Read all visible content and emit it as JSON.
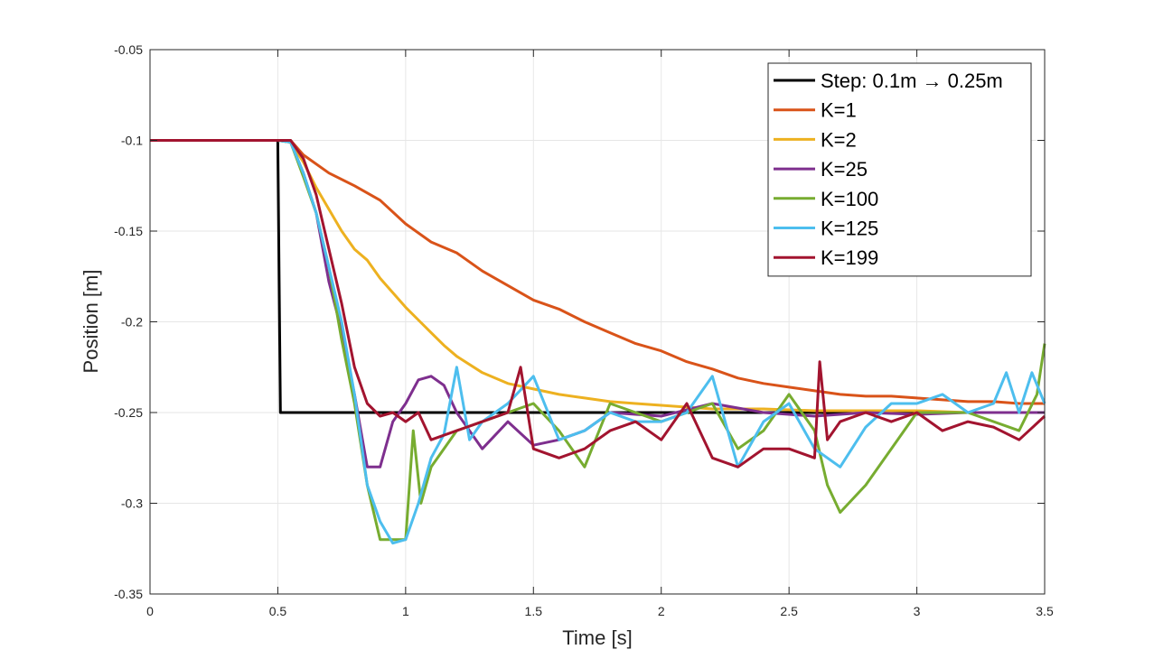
{
  "chart_data": {
    "type": "line",
    "xlabel": "Time [s]",
    "ylabel": "Position [m]",
    "xlim": [
      0,
      3.5
    ],
    "ylim": [
      -0.35,
      -0.05
    ],
    "xticks": [
      0,
      0.5,
      1,
      1.5,
      2,
      2.5,
      3,
      3.5
    ],
    "xtick_labels": [
      "0",
      "0.5",
      "1",
      "1.5",
      "2",
      "2.5",
      "3",
      "3.5"
    ],
    "yticks": [
      -0.05,
      -0.1,
      -0.15,
      -0.2,
      -0.25,
      -0.3,
      -0.35
    ],
    "ytick_labels": [
      "-0.05",
      "-0.1",
      "-0.15",
      "-0.2",
      "-0.25",
      "-0.3",
      "-0.35"
    ],
    "grid": true,
    "legend_position": "top-right",
    "series": [
      {
        "name": "Step: 0.1m → 0.25m",
        "color": "#000000",
        "points": [
          [
            0,
            -0.1
          ],
          [
            0.5,
            -0.1
          ],
          [
            0.51,
            -0.25
          ],
          [
            3.5,
            -0.25
          ]
        ]
      },
      {
        "name": "K=1",
        "color": "#D95319",
        "points": [
          [
            0,
            -0.1
          ],
          [
            0.5,
            -0.1
          ],
          [
            0.55,
            -0.1
          ],
          [
            0.6,
            -0.108
          ],
          [
            0.7,
            -0.118
          ],
          [
            0.8,
            -0.125
          ],
          [
            0.9,
            -0.133
          ],
          [
            1.0,
            -0.146
          ],
          [
            1.1,
            -0.156
          ],
          [
            1.2,
            -0.162
          ],
          [
            1.3,
            -0.172
          ],
          [
            1.4,
            -0.18
          ],
          [
            1.5,
            -0.188
          ],
          [
            1.6,
            -0.193
          ],
          [
            1.7,
            -0.2
          ],
          [
            1.8,
            -0.206
          ],
          [
            1.9,
            -0.212
          ],
          [
            2.0,
            -0.216
          ],
          [
            2.1,
            -0.222
          ],
          [
            2.2,
            -0.226
          ],
          [
            2.3,
            -0.231
          ],
          [
            2.4,
            -0.234
          ],
          [
            2.5,
            -0.236
          ],
          [
            2.6,
            -0.238
          ],
          [
            2.7,
            -0.24
          ],
          [
            2.8,
            -0.241
          ],
          [
            2.9,
            -0.241
          ],
          [
            3.0,
            -0.242
          ],
          [
            3.1,
            -0.243
          ],
          [
            3.2,
            -0.244
          ],
          [
            3.3,
            -0.244
          ],
          [
            3.4,
            -0.245
          ],
          [
            3.5,
            -0.245
          ]
        ]
      },
      {
        "name": "K=2",
        "color": "#EDB120",
        "points": [
          [
            0,
            -0.1
          ],
          [
            0.5,
            -0.1
          ],
          [
            0.55,
            -0.101
          ],
          [
            0.6,
            -0.112
          ],
          [
            0.65,
            -0.126
          ],
          [
            0.7,
            -0.138
          ],
          [
            0.75,
            -0.15
          ],
          [
            0.8,
            -0.16
          ],
          [
            0.85,
            -0.166
          ],
          [
            0.9,
            -0.176
          ],
          [
            0.95,
            -0.184
          ],
          [
            1.0,
            -0.192
          ],
          [
            1.05,
            -0.199
          ],
          [
            1.1,
            -0.206
          ],
          [
            1.15,
            -0.213
          ],
          [
            1.2,
            -0.219
          ],
          [
            1.3,
            -0.228
          ],
          [
            1.4,
            -0.234
          ],
          [
            1.5,
            -0.237
          ],
          [
            1.6,
            -0.24
          ],
          [
            1.7,
            -0.242
          ],
          [
            1.8,
            -0.244
          ],
          [
            1.9,
            -0.245
          ],
          [
            2.0,
            -0.246
          ],
          [
            2.2,
            -0.248
          ],
          [
            2.4,
            -0.248
          ],
          [
            2.6,
            -0.249
          ],
          [
            2.8,
            -0.249
          ],
          [
            3.0,
            -0.249
          ],
          [
            3.2,
            -0.25
          ],
          [
            3.5,
            -0.25
          ]
        ]
      },
      {
        "name": "K=25",
        "color": "#7E2F8E",
        "points": [
          [
            0,
            -0.1
          ],
          [
            0.5,
            -0.1
          ],
          [
            0.55,
            -0.101
          ],
          [
            0.6,
            -0.118
          ],
          [
            0.65,
            -0.14
          ],
          [
            0.7,
            -0.178
          ],
          [
            0.75,
            -0.205
          ],
          [
            0.8,
            -0.24
          ],
          [
            0.85,
            -0.28
          ],
          [
            0.9,
            -0.28
          ],
          [
            0.95,
            -0.255
          ],
          [
            1.0,
            -0.245
          ],
          [
            1.05,
            -0.232
          ],
          [
            1.1,
            -0.23
          ],
          [
            1.15,
            -0.235
          ],
          [
            1.2,
            -0.25
          ],
          [
            1.3,
            -0.27
          ],
          [
            1.4,
            -0.255
          ],
          [
            1.5,
            -0.268
          ],
          [
            1.6,
            -0.265
          ],
          [
            1.7,
            -0.26
          ],
          [
            1.8,
            -0.25
          ],
          [
            2.0,
            -0.252
          ],
          [
            2.2,
            -0.245
          ],
          [
            2.4,
            -0.25
          ],
          [
            2.6,
            -0.252
          ],
          [
            2.8,
            -0.25
          ],
          [
            3.0,
            -0.251
          ],
          [
            3.2,
            -0.25
          ],
          [
            3.5,
            -0.25
          ]
        ]
      },
      {
        "name": "K=100",
        "color": "#77AC30",
        "points": [
          [
            0,
            -0.1
          ],
          [
            0.5,
            -0.1
          ],
          [
            0.55,
            -0.101
          ],
          [
            0.6,
            -0.12
          ],
          [
            0.65,
            -0.14
          ],
          [
            0.7,
            -0.17
          ],
          [
            0.75,
            -0.21
          ],
          [
            0.8,
            -0.245
          ],
          [
            0.85,
            -0.29
          ],
          [
            0.9,
            -0.32
          ],
          [
            0.95,
            -0.32
          ],
          [
            1.0,
            -0.32
          ],
          [
            1.03,
            -0.26
          ],
          [
            1.06,
            -0.3
          ],
          [
            1.1,
            -0.28
          ],
          [
            1.2,
            -0.26
          ],
          [
            1.3,
            -0.255
          ],
          [
            1.4,
            -0.25
          ],
          [
            1.5,
            -0.245
          ],
          [
            1.6,
            -0.26
          ],
          [
            1.7,
            -0.28
          ],
          [
            1.8,
            -0.245
          ],
          [
            1.9,
            -0.25
          ],
          [
            2.0,
            -0.255
          ],
          [
            2.2,
            -0.245
          ],
          [
            2.3,
            -0.27
          ],
          [
            2.4,
            -0.26
          ],
          [
            2.5,
            -0.24
          ],
          [
            2.6,
            -0.26
          ],
          [
            2.65,
            -0.29
          ],
          [
            2.7,
            -0.305
          ],
          [
            2.8,
            -0.29
          ],
          [
            2.9,
            -0.27
          ],
          [
            3.0,
            -0.25
          ],
          [
            3.2,
            -0.25
          ],
          [
            3.4,
            -0.26
          ],
          [
            3.47,
            -0.24
          ],
          [
            3.5,
            -0.212
          ]
        ]
      },
      {
        "name": "K=125",
        "color": "#4DBEEE",
        "points": [
          [
            0,
            -0.1
          ],
          [
            0.5,
            -0.1
          ],
          [
            0.55,
            -0.101
          ],
          [
            0.6,
            -0.118
          ],
          [
            0.65,
            -0.14
          ],
          [
            0.7,
            -0.17
          ],
          [
            0.75,
            -0.2
          ],
          [
            0.8,
            -0.24
          ],
          [
            0.85,
            -0.29
          ],
          [
            0.9,
            -0.31
          ],
          [
            0.95,
            -0.322
          ],
          [
            1.0,
            -0.32
          ],
          [
            1.05,
            -0.3
          ],
          [
            1.1,
            -0.275
          ],
          [
            1.15,
            -0.262
          ],
          [
            1.2,
            -0.225
          ],
          [
            1.25,
            -0.265
          ],
          [
            1.3,
            -0.255
          ],
          [
            1.4,
            -0.245
          ],
          [
            1.5,
            -0.23
          ],
          [
            1.6,
            -0.265
          ],
          [
            1.7,
            -0.26
          ],
          [
            1.8,
            -0.25
          ],
          [
            1.9,
            -0.255
          ],
          [
            2.0,
            -0.255
          ],
          [
            2.1,
            -0.25
          ],
          [
            2.2,
            -0.23
          ],
          [
            2.3,
            -0.28
          ],
          [
            2.4,
            -0.255
          ],
          [
            2.5,
            -0.245
          ],
          [
            2.6,
            -0.27
          ],
          [
            2.7,
            -0.28
          ],
          [
            2.8,
            -0.258
          ],
          [
            2.9,
            -0.245
          ],
          [
            3.0,
            -0.245
          ],
          [
            3.1,
            -0.24
          ],
          [
            3.2,
            -0.25
          ],
          [
            3.3,
            -0.245
          ],
          [
            3.35,
            -0.228
          ],
          [
            3.4,
            -0.25
          ],
          [
            3.45,
            -0.228
          ],
          [
            3.5,
            -0.245
          ]
        ]
      },
      {
        "name": "K=199",
        "color": "#A2142F",
        "points": [
          [
            0,
            -0.1
          ],
          [
            0.5,
            -0.1
          ],
          [
            0.55,
            -0.1
          ],
          [
            0.6,
            -0.11
          ],
          [
            0.65,
            -0.13
          ],
          [
            0.7,
            -0.16
          ],
          [
            0.75,
            -0.19
          ],
          [
            0.8,
            -0.225
          ],
          [
            0.85,
            -0.245
          ],
          [
            0.9,
            -0.252
          ],
          [
            0.95,
            -0.25
          ],
          [
            1.0,
            -0.255
          ],
          [
            1.05,
            -0.25
          ],
          [
            1.1,
            -0.265
          ],
          [
            1.2,
            -0.26
          ],
          [
            1.3,
            -0.255
          ],
          [
            1.4,
            -0.25
          ],
          [
            1.45,
            -0.225
          ],
          [
            1.5,
            -0.27
          ],
          [
            1.6,
            -0.275
          ],
          [
            1.7,
            -0.27
          ],
          [
            1.8,
            -0.26
          ],
          [
            1.9,
            -0.255
          ],
          [
            2.0,
            -0.265
          ],
          [
            2.1,
            -0.245
          ],
          [
            2.2,
            -0.275
          ],
          [
            2.3,
            -0.28
          ],
          [
            2.4,
            -0.27
          ],
          [
            2.5,
            -0.27
          ],
          [
            2.6,
            -0.275
          ],
          [
            2.62,
            -0.222
          ],
          [
            2.65,
            -0.265
          ],
          [
            2.7,
            -0.255
          ],
          [
            2.8,
            -0.25
          ],
          [
            2.9,
            -0.255
          ],
          [
            3.0,
            -0.25
          ],
          [
            3.1,
            -0.26
          ],
          [
            3.2,
            -0.255
          ],
          [
            3.3,
            -0.258
          ],
          [
            3.4,
            -0.265
          ],
          [
            3.5,
            -0.252
          ]
        ]
      }
    ]
  }
}
